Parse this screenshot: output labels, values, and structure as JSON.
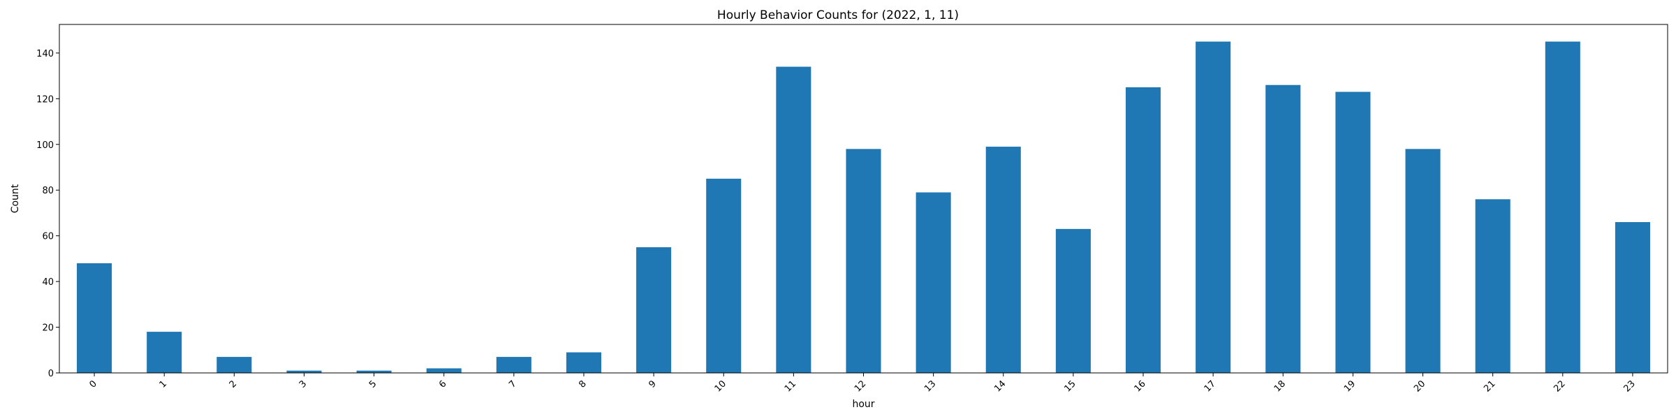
{
  "chart_data": {
    "type": "bar",
    "title": "Hourly Behavior Counts for (2022, 1, 11)",
    "xlabel": "hour",
    "ylabel": "Count",
    "categories": [
      "0",
      "1",
      "2",
      "3",
      "5",
      "6",
      "7",
      "8",
      "9",
      "10",
      "11",
      "12",
      "13",
      "14",
      "15",
      "16",
      "17",
      "18",
      "19",
      "20",
      "21",
      "22",
      "23"
    ],
    "values": [
      48,
      18,
      7,
      1,
      1,
      2,
      7,
      9,
      55,
      85,
      134,
      98,
      79,
      99,
      63,
      125,
      145,
      126,
      123,
      98,
      76,
      145,
      66
    ],
    "ylim": [
      0,
      152.5
    ],
    "yticks": [
      0,
      20,
      40,
      60,
      80,
      100,
      120,
      140
    ],
    "bar_color": "#1f77b4",
    "grid": false,
    "xtick_rotation": 45
  }
}
